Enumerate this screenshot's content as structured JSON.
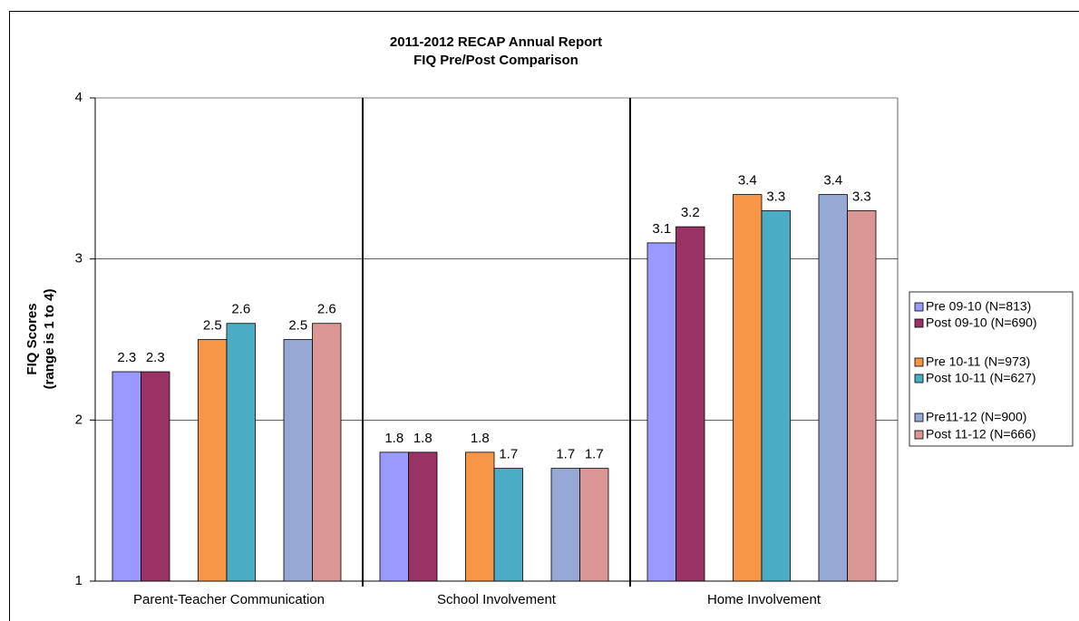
{
  "chart_data": {
    "type": "bar",
    "title": "2011-2012 RECAP Annual Report",
    "subtitle": "FIQ Pre/Post Comparison",
    "y_label": [
      "FIQ Scores",
      "(range is 1 to 4)"
    ],
    "categories": [
      "Parent-Teacher Communication",
      "School Involvement",
      "Home Involvement"
    ],
    "series": [
      {
        "name": "Pre 09-10 (N=813)",
        "color": "#9999ff",
        "values": [
          2.3,
          1.8,
          3.1
        ]
      },
      {
        "name": "Post 09-10 (N=690)",
        "color": "#993366",
        "values": [
          2.3,
          1.8,
          3.2
        ]
      },
      {
        "name": "Pre 10-11 (N=973)",
        "color": "#f79646",
        "values": [
          2.5,
          1.8,
          3.4
        ]
      },
      {
        "name": "Post 10-11 (N=627)",
        "color": "#4bacc6",
        "values": [
          2.6,
          1.7,
          3.3
        ]
      },
      {
        "name": "Pre11-12 (N=900)",
        "color": "#95a9d4",
        "values": [
          2.5,
          1.7,
          3.4
        ]
      },
      {
        "name": "Post 11-12 (N=666)",
        "color": "#d99694",
        "values": [
          2.6,
          1.7,
          3.3
        ]
      }
    ],
    "ylim": [
      1,
      4
    ],
    "yticks": [
      1,
      2,
      3,
      4
    ],
    "grid": true,
    "legend": "right"
  }
}
